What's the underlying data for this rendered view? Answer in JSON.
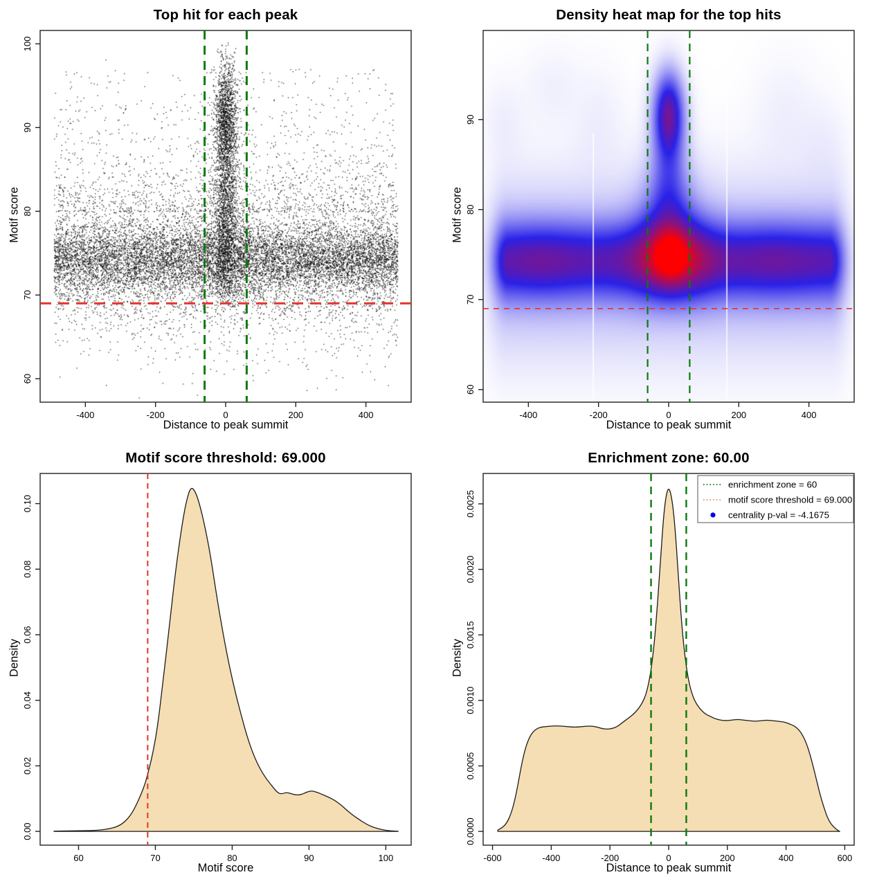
{
  "figure_background": "#ffffff",
  "palette": {
    "threshold_red": "#e3342b",
    "zone_green": "#0b7a0b",
    "density_fill": "#f5deb3",
    "density_stroke": "#1a1a1a",
    "legend_red": "#f08080",
    "legend_blue": "#0000ee",
    "axis_color": "#222222",
    "point_color": "rgba(0,0,0,0.92)"
  },
  "chart_data": [
    {
      "type": "scatter",
      "title": "Top hit for each peak",
      "xlabel": "Distance to peak summit",
      "ylabel": "Motif score",
      "xlim": [
        -529,
        529
      ],
      "ylim": [
        57.2,
        101.6
      ],
      "xticks": {
        "values": [
          -400,
          -200,
          0,
          200,
          400
        ],
        "labels": [
          "-400",
          "-200",
          "0",
          "200",
          "400"
        ]
      },
      "yticks": {
        "values": [
          60,
          70,
          80,
          90,
          100
        ],
        "labels": [
          "60",
          "70",
          "80",
          "90",
          "100"
        ]
      },
      "lines": [
        {
          "orient": "h",
          "value": 69,
          "color": "threshold_red",
          "width": 3,
          "dash": [
            16,
            10
          ]
        },
        {
          "orient": "v",
          "value": -60,
          "color": "zone_green",
          "width": 3,
          "dash": [
            13,
            9
          ]
        },
        {
          "orient": "v",
          "value": 60,
          "color": "zone_green",
          "width": 3,
          "dash": [
            13,
            9
          ]
        }
      ],
      "generator": {
        "seed": 20240612,
        "groups": [
          {
            "n": 13000,
            "x": [
              "uniform",
              -490,
              490
            ],
            "y": [
              {
                "w": 0.6,
                "d": [
                  "normal",
                  74.3,
                  2.1
                ]
              },
              {
                "w": 0.16,
                "d": [
                  "normal",
                  76.3,
                  4.2
                ]
              },
              {
                "w": 0.13,
                "d": [
                  "normal",
                  72.6,
                  3.6
                ]
              },
              {
                "w": 0.07,
                "d": [
                  "normal",
                  78.5,
                  6.5
                ]
              },
              {
                "w": 0.04,
                "d": [
                  "normal",
                  68.0,
                  4.0
                ]
              }
            ],
            "clamp_y": [
              57.4,
              100.2
            ]
          },
          {
            "n": 900,
            "x": [
              "uniform",
              -490,
              490
            ],
            "y": [
              {
                "w": 1,
                "d": [
                  "powhigh",
                  80,
                  97
                ]
              }
            ],
            "clamp_y": [
              57.4,
              100.2
            ]
          },
          {
            "n": 3000,
            "x": [
              "normal",
              0,
              16
            ],
            "clamp_x": [
              -68,
              68
            ],
            "y": [
              {
                "w": 0.38,
                "d": [
                  "normal",
                  91.5,
                  3.1
                ]
              },
              {
                "w": 0.3,
                "d": [
                  "normal",
                  84.5,
                  4.8
                ]
              },
              {
                "w": 0.22,
                "d": [
                  "normal",
                  76.0,
                  3.4
                ]
              },
              {
                "w": 0.1,
                "d": [
                  "uniform",
                  70,
                  100
                ]
              }
            ],
            "clamp_y": [
              68.6,
              100.2
            ]
          },
          {
            "n": 700,
            "x": [
              "normal",
              0,
              40
            ],
            "clamp_x": [
              -130,
              130
            ],
            "y": [
              {
                "w": 0.55,
                "d": [
                  "normal",
                  80,
                  7
                ]
              },
              {
                "w": 0.45,
                "d": [
                  "normal",
                  74.5,
                  3.2
                ]
              }
            ],
            "clamp_y": [
              64,
              99.5
            ]
          }
        ]
      }
    },
    {
      "type": "heatmap",
      "title": "Density heat map for the top hits",
      "xlabel": "Distance to peak summit",
      "ylabel": "Motif score",
      "xlim": [
        -529,
        529
      ],
      "ylim": [
        58.6,
        99.9
      ],
      "xticks": {
        "values": [
          -400,
          -200,
          0,
          200,
          400
        ],
        "labels": [
          "-400",
          "-200",
          "0",
          "200",
          "400"
        ]
      },
      "yticks": {
        "values": [
          60,
          70,
          80,
          90
        ],
        "labels": [
          "60",
          "70",
          "80",
          "90"
        ]
      },
      "lines": [
        {
          "orient": "h",
          "value": 69,
          "color": "threshold_red",
          "width": 1.6,
          "dash": [
            8,
            7
          ]
        },
        {
          "orient": "v",
          "value": -60,
          "color": "zone_green",
          "width": 2.2,
          "dash": [
            11,
            8
          ]
        },
        {
          "orient": "v",
          "value": 60,
          "color": "zone_green",
          "width": 2.2,
          "dash": [
            11,
            8
          ]
        }
      ],
      "colormap": {
        "stops": [
          "#ffffff",
          "#2a22e8",
          "#ff0000"
        ],
        "mid": 0.45
      },
      "dmax": 2.45,
      "gamma": 0.9,
      "kernels": [
        {
          "type": "band",
          "amp": 1.0,
          "y0": 74.3,
          "sy": 2.8,
          "xflat": 456,
          "xsoft": 30,
          "mods": [
            {
              "a": 0.16,
              "x0": -360,
              "sx": 95
            },
            {
              "a": 0.14,
              "x0": 300,
              "sx": 110
            },
            {
              "a": 0.1,
              "x0": 90,
              "sx": 70
            }
          ]
        },
        {
          "type": "band",
          "amp": 0.3,
          "y0": 73.5,
          "sy": 6.5,
          "xflat": 460,
          "xsoft": 38
        },
        {
          "type": "blob",
          "amp": 0.85,
          "x0": 5,
          "sx": 72,
          "y0": 74.7,
          "sy": 3.1
        },
        {
          "type": "blob",
          "amp": 0.6,
          "x0": 5,
          "sx": 32,
          "y0": 74.9,
          "sy": 2.0
        },
        {
          "type": "blob",
          "amp": 0.45,
          "x0": 0,
          "sx": 55,
          "y0": 79.5,
          "sy": 3.6
        },
        {
          "type": "blob",
          "amp": 0.5,
          "x0": 0,
          "sx": 34,
          "y0": 85.0,
          "sy": 4.6
        },
        {
          "type": "blob",
          "amp": 1.25,
          "x0": 0,
          "sx": 28,
          "y0": 90.7,
          "sy": 3.0
        },
        {
          "type": "blob",
          "amp": 0.05,
          "x0": -330,
          "sx": 55,
          "y0": 93.5,
          "sy": 3.0
        },
        {
          "type": "blob",
          "amp": 0.05,
          "x0": -200,
          "sx": 50,
          "y0": 90.0,
          "sy": 4.0
        },
        {
          "type": "blob",
          "amp": 0.05,
          "x0": 330,
          "sx": 60,
          "y0": 91.0,
          "sy": 4.0
        },
        {
          "type": "blob",
          "amp": 0.04,
          "x0": 440,
          "sx": 45,
          "y0": 87.5,
          "sy": 3.5
        },
        {
          "type": "blob",
          "amp": 0.05,
          "x0": -470,
          "sx": 40,
          "y0": 90.0,
          "sy": 3.0
        }
      ],
      "artifact_lines": [
        {
          "x": -215,
          "y1": 59,
          "y2": 88.5
        },
        {
          "x": 166,
          "y1": 59,
          "y2": 94
        }
      ]
    },
    {
      "type": "area",
      "title": "Motif score threshold: 69.000",
      "xlabel": "Motif score",
      "ylabel": "Density",
      "xlim": [
        55.0,
        103.3
      ],
      "ylim": [
        -0.0042,
        0.1092
      ],
      "xticks": {
        "values": [
          60,
          70,
          80,
          90,
          100
        ],
        "labels": [
          "60",
          "70",
          "80",
          "90",
          "100"
        ]
      },
      "yticks": {
        "values": [
          0.0,
          0.02,
          0.04,
          0.06,
          0.08,
          0.1
        ],
        "labels": [
          "0.00",
          "0.02",
          "0.04",
          "0.06",
          "0.08",
          "0.10"
        ]
      },
      "lines": [
        {
          "orient": "v",
          "value": 69,
          "color": "threshold_red",
          "width": 2,
          "dash": [
            8,
            6
          ]
        }
      ],
      "points": [
        [
          56.8,
          8e-05
        ],
        [
          58,
          0.00012
        ],
        [
          59.5,
          0.00018
        ],
        [
          61,
          0.00022
        ],
        [
          62,
          0.0003
        ],
        [
          63,
          0.00045
        ],
        [
          64,
          0.0008
        ],
        [
          65,
          0.0014
        ],
        [
          66,
          0.0028
        ],
        [
          67,
          0.0056
        ],
        [
          68,
          0.0105
        ],
        [
          68.7,
          0.0148
        ],
        [
          69,
          0.0175
        ],
        [
          69.6,
          0.023
        ],
        [
          70.3,
          0.032
        ],
        [
          71,
          0.046
        ],
        [
          71.8,
          0.062
        ],
        [
          72.6,
          0.079
        ],
        [
          73.4,
          0.0925
        ],
        [
          74,
          0.1005
        ],
        [
          74.6,
          0.1052
        ],
        [
          75.2,
          0.1038
        ],
        [
          75.8,
          0.0995
        ],
        [
          76.5,
          0.0925
        ],
        [
          77.2,
          0.0838
        ],
        [
          78,
          0.0715
        ],
        [
          78.8,
          0.0605
        ],
        [
          79.6,
          0.0508
        ],
        [
          80.4,
          0.0425
        ],
        [
          81.2,
          0.0352
        ],
        [
          82,
          0.0285
        ],
        [
          82.8,
          0.0232
        ],
        [
          83.6,
          0.0192
        ],
        [
          84.4,
          0.0162
        ],
        [
          85.1,
          0.0141
        ],
        [
          85.9,
          0.0118
        ],
        [
          86.4,
          0.0114
        ],
        [
          87.1,
          0.0119
        ],
        [
          87.7,
          0.0115
        ],
        [
          88.3,
          0.0111
        ],
        [
          89,
          0.0112
        ],
        [
          89.7,
          0.012
        ],
        [
          90.3,
          0.0124
        ],
        [
          91,
          0.012
        ],
        [
          91.8,
          0.0112
        ],
        [
          92.6,
          0.0104
        ],
        [
          93.4,
          0.0094
        ],
        [
          94.2,
          0.008
        ],
        [
          95,
          0.0063
        ],
        [
          95.8,
          0.0048
        ],
        [
          96.6,
          0.0035
        ],
        [
          97.4,
          0.0023
        ],
        [
          98.2,
          0.0014
        ],
        [
          99,
          0.0008
        ],
        [
          100,
          0.0003
        ],
        [
          101,
          0.0001
        ],
        [
          101.6,
          4e-05
        ]
      ]
    },
    {
      "type": "area",
      "title": "Enrichment zone: 60.00",
      "xlabel": "Distance to peak summit",
      "ylabel": "Density",
      "xlim": [
        -632,
        632
      ],
      "ylim": [
        -0.000105,
        0.002732
      ],
      "xticks": {
        "values": [
          -600,
          -400,
          -200,
          0,
          200,
          400,
          600
        ],
        "labels": [
          "-600",
          "-400",
          "-200",
          "0",
          "200",
          "400",
          "600"
        ]
      },
      "yticks": {
        "values": [
          0.0,
          0.0005,
          0.001,
          0.0015,
          0.002,
          0.0025
        ],
        "labels": [
          "0.0000",
          "0.0005",
          "0.0010",
          "0.0015",
          "0.0020",
          "0.0025"
        ]
      },
      "lines": [
        {
          "orient": "v",
          "value": -60,
          "color": "zone_green",
          "width": 2.4,
          "dash": [
            11,
            8
          ]
        },
        {
          "orient": "v",
          "value": 60,
          "color": "zone_green",
          "width": 2.4,
          "dash": [
            11,
            8
          ]
        }
      ],
      "points": [
        [
          -582,
          1e-05
        ],
        [
          -565,
          3e-05
        ],
        [
          -550,
          7e-05
        ],
        [
          -538,
          0.00013
        ],
        [
          -526,
          0.00022
        ],
        [
          -514,
          0.00035
        ],
        [
          -502,
          0.0005
        ],
        [
          -490,
          0.00062
        ],
        [
          -478,
          0.0007
        ],
        [
          -466,
          0.00075
        ],
        [
          -452,
          0.00078
        ],
        [
          -438,
          0.000795
        ],
        [
          -420,
          0.0008
        ],
        [
          -395,
          0.000805
        ],
        [
          -370,
          0.000805
        ],
        [
          -345,
          0.0008
        ],
        [
          -320,
          0.000795
        ],
        [
          -295,
          0.0008
        ],
        [
          -270,
          0.000805
        ],
        [
          -248,
          0.0008
        ],
        [
          -228,
          0.000785
        ],
        [
          -210,
          0.00078
        ],
        [
          -192,
          0.000785
        ],
        [
          -175,
          0.0008
        ],
        [
          -158,
          0.00083
        ],
        [
          -140,
          0.00086
        ],
        [
          -122,
          0.00089
        ],
        [
          -105,
          0.00093
        ],
        [
          -90,
          0.00098
        ],
        [
          -78,
          0.00104
        ],
        [
          -68,
          0.00113
        ],
        [
          -58,
          0.00126
        ],
        [
          -48,
          0.00146
        ],
        [
          -40,
          0.00168
        ],
        [
          -32,
          0.00193
        ],
        [
          -25,
          0.00216
        ],
        [
          -18,
          0.00238
        ],
        [
          -12,
          0.00251
        ],
        [
          -6,
          0.00259
        ],
        [
          0,
          0.00262
        ],
        [
          6,
          0.00259
        ],
        [
          12,
          0.00252
        ],
        [
          18,
          0.00241
        ],
        [
          25,
          0.00222
        ],
        [
          32,
          0.00198
        ],
        [
          40,
          0.00172
        ],
        [
          48,
          0.00149
        ],
        [
          58,
          0.00129
        ],
        [
          68,
          0.00115
        ],
        [
          78,
          0.00106
        ],
        [
          90,
          0.00099
        ],
        [
          105,
          0.00094
        ],
        [
          122,
          0.0009
        ],
        [
          140,
          0.00088
        ],
        [
          158,
          0.00086
        ],
        [
          175,
          0.00085
        ],
        [
          195,
          0.000845
        ],
        [
          215,
          0.00085
        ],
        [
          235,
          0.000855
        ],
        [
          255,
          0.00085
        ],
        [
          275,
          0.000845
        ],
        [
          295,
          0.00084
        ],
        [
          315,
          0.000845
        ],
        [
          335,
          0.00085
        ],
        [
          355,
          0.000845
        ],
        [
          375,
          0.00084
        ],
        [
          395,
          0.000835
        ],
        [
          412,
          0.00082
        ],
        [
          428,
          0.000805
        ],
        [
          442,
          0.00078
        ],
        [
          455,
          0.00074
        ],
        [
          468,
          0.00068
        ],
        [
          480,
          0.0006
        ],
        [
          492,
          0.0005
        ],
        [
          504,
          0.00039
        ],
        [
          516,
          0.00028
        ],
        [
          528,
          0.00019
        ],
        [
          540,
          0.00011
        ],
        [
          552,
          6e-05
        ],
        [
          564,
          3e-05
        ],
        [
          575,
          1e-05
        ],
        [
          583,
          0
        ]
      ],
      "legend": {
        "entries": [
          {
            "swatch": "dotted-line",
            "color": "zone_green",
            "label": "enrichment zone = 60"
          },
          {
            "swatch": "dotted-line",
            "color": "legend_red",
            "label": "motif score threshold = 69.000"
          },
          {
            "swatch": "dot",
            "color": "legend_blue",
            "label": "centrality p-val = -4.1675"
          }
        ]
      }
    }
  ]
}
